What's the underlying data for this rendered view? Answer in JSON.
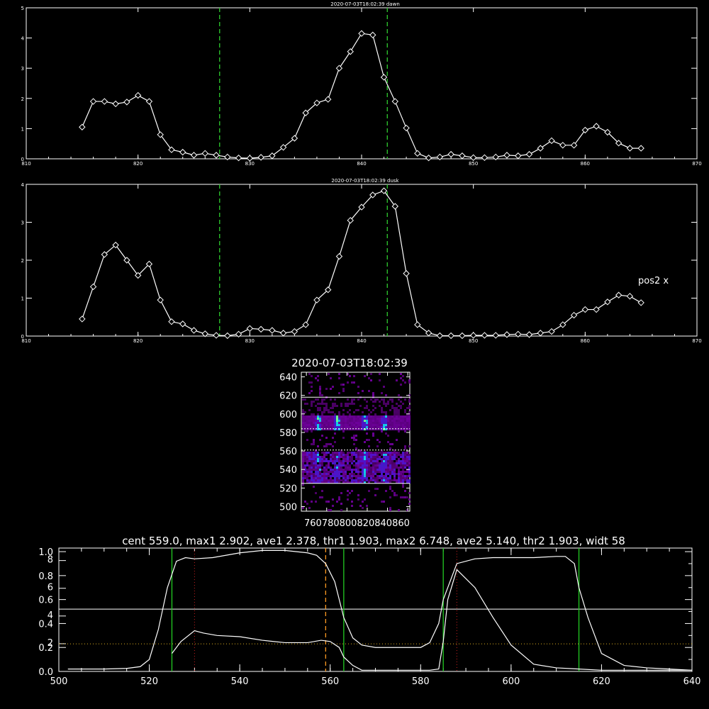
{
  "chart_data": [
    {
      "type": "line",
      "title": "2020-07-03T18:02:39 dawn",
      "xlim": [
        810,
        870
      ],
      "ylim": [
        0,
        5
      ],
      "x_ticks": [
        810,
        820,
        830,
        840,
        850,
        860,
        870
      ],
      "y_ticks": [
        0,
        1,
        2,
        3,
        4,
        5
      ],
      "vlines": [
        827.3,
        842.3
      ],
      "marker": "diamond",
      "x": [
        815,
        816,
        817,
        818,
        819,
        820,
        821,
        822,
        823,
        824,
        825,
        826,
        827,
        828,
        829,
        830,
        831,
        832,
        833,
        834,
        835,
        836,
        837,
        838,
        839,
        840,
        841,
        842,
        843,
        844,
        845,
        846,
        847,
        848,
        849,
        850,
        851,
        852,
        853,
        854,
        855,
        856,
        857,
        858,
        859,
        860,
        861,
        862,
        863,
        864,
        865
      ],
      "y": [
        1.05,
        1.9,
        1.9,
        1.82,
        1.88,
        2.1,
        1.9,
        0.8,
        0.3,
        0.22,
        0.12,
        0.18,
        0.12,
        0.06,
        0.03,
        0.02,
        0.05,
        0.1,
        0.38,
        0.68,
        1.52,
        1.85,
        1.97,
        3.0,
        3.55,
        4.15,
        4.1,
        2.7,
        1.9,
        1.02,
        0.18,
        0.03,
        0.06,
        0.15,
        0.1,
        0.04,
        0.04,
        0.06,
        0.12,
        0.1,
        0.15,
        0.35,
        0.6,
        0.45,
        0.45,
        0.95,
        1.08,
        0.88,
        0.52,
        0.35,
        0.35
      ]
    },
    {
      "type": "line",
      "title": "2020-07-03T18:02:39 dusk",
      "xlim": [
        810,
        870
      ],
      "ylim": [
        0,
        4
      ],
      "x_ticks": [
        810,
        820,
        830,
        840,
        850,
        860,
        870
      ],
      "y_ticks": [
        0,
        1,
        2,
        3,
        4
      ],
      "vlines": [
        827.3,
        842.3
      ],
      "annotation": "pos2  x",
      "marker": "diamond",
      "x": [
        815,
        816,
        817,
        818,
        819,
        820,
        821,
        822,
        823,
        824,
        825,
        826,
        827,
        828,
        829,
        830,
        831,
        832,
        833,
        834,
        835,
        836,
        837,
        838,
        839,
        840,
        841,
        842,
        843,
        844,
        845,
        846,
        847,
        848,
        849,
        850,
        851,
        852,
        853,
        854,
        855,
        856,
        857,
        858,
        859,
        860,
        861,
        862,
        863,
        864,
        865
      ],
      "y": [
        0.45,
        1.3,
        2.15,
        2.4,
        2.0,
        1.6,
        1.9,
        0.95,
        0.38,
        0.32,
        0.15,
        0.06,
        0.02,
        0.01,
        0.05,
        0.2,
        0.18,
        0.15,
        0.08,
        0.12,
        0.3,
        0.95,
        1.22,
        2.1,
        3.05,
        3.4,
        3.72,
        3.83,
        3.42,
        1.65,
        0.3,
        0.08,
        0.01,
        0.01,
        0.01,
        0.02,
        0.02,
        0.02,
        0.04,
        0.05,
        0.04,
        0.08,
        0.12,
        0.3,
        0.55,
        0.7,
        0.7,
        0.9,
        1.08,
        1.05,
        0.88
      ]
    },
    {
      "type": "heatmap",
      "title": "2020-07-03T18:02:39",
      "xlim": [
        755,
        862
      ],
      "ylim": [
        495,
        645
      ],
      "x_tick_label": "760780800820840860",
      "y_ticks": [
        500,
        520,
        540,
        560,
        580,
        600,
        620,
        640
      ],
      "hlines": [
        525,
        561,
        584,
        618
      ]
    },
    {
      "type": "line",
      "title": "cent 559.0, max1 2.902, ave1 2.378, thr1 1.903, max2 6.748, ave2 5.140, thr2 1.903, widt 58",
      "xlim": [
        500,
        640
      ],
      "x_ticks": [
        500,
        520,
        540,
        560,
        580,
        600,
        620,
        640
      ],
      "y_ticks_left_a": [
        "0.0",
        "0.2",
        "0.4",
        "0.6",
        "0.8",
        "1.0"
      ],
      "y_ticks_left_b": [
        "2",
        "4",
        "6",
        "8"
      ],
      "ylim": [
        0,
        1.03
      ],
      "vlines_green": [
        525,
        563,
        585,
        615
      ],
      "vlines_red": [
        530,
        588
      ],
      "vline_orange": 559,
      "hline_solid": 0.52,
      "hline_dotted": 0.23,
      "series": [
        {
          "x": [
            502,
            510,
            515,
            518,
            520,
            522,
            524,
            526,
            528,
            530,
            534,
            540,
            545,
            550,
            555,
            557,
            559,
            561,
            563,
            565,
            567,
            570,
            575,
            580,
            582,
            584,
            585,
            588,
            592,
            596,
            600,
            605,
            610,
            612,
            614,
            615,
            617,
            620,
            625,
            630,
            635,
            640
          ],
          "y": [
            0.02,
            0.02,
            0.025,
            0.04,
            0.1,
            0.35,
            0.7,
            0.92,
            0.95,
            0.94,
            0.95,
            0.99,
            1.01,
            1.01,
            0.99,
            0.97,
            0.9,
            0.75,
            0.45,
            0.28,
            0.22,
            0.2,
            0.2,
            0.2,
            0.24,
            0.4,
            0.6,
            0.9,
            0.94,
            0.95,
            0.95,
            0.95,
            0.96,
            0.96,
            0.9,
            0.7,
            0.45,
            0.15,
            0.05,
            0.03,
            0.02,
            0.01
          ]
        },
        {
          "x": [
            525,
            527,
            530,
            532,
            535,
            540,
            545,
            550,
            555,
            558,
            560,
            562,
            563,
            565,
            567,
            575,
            580,
            582,
            584,
            585,
            586,
            588,
            592,
            596,
            600,
            605,
            610,
            615,
            620,
            625,
            630,
            635,
            640
          ],
          "y": [
            0.15,
            0.25,
            0.34,
            0.32,
            0.3,
            0.29,
            0.26,
            0.24,
            0.24,
            0.26,
            0.25,
            0.2,
            0.12,
            0.05,
            0.01,
            0.01,
            0.01,
            0.01,
            0.02,
            0.25,
            0.6,
            0.85,
            0.7,
            0.45,
            0.22,
            0.06,
            0.03,
            0.02,
            0.01,
            0.01,
            0.01,
            0.01,
            0.01
          ]
        }
      ]
    }
  ]
}
